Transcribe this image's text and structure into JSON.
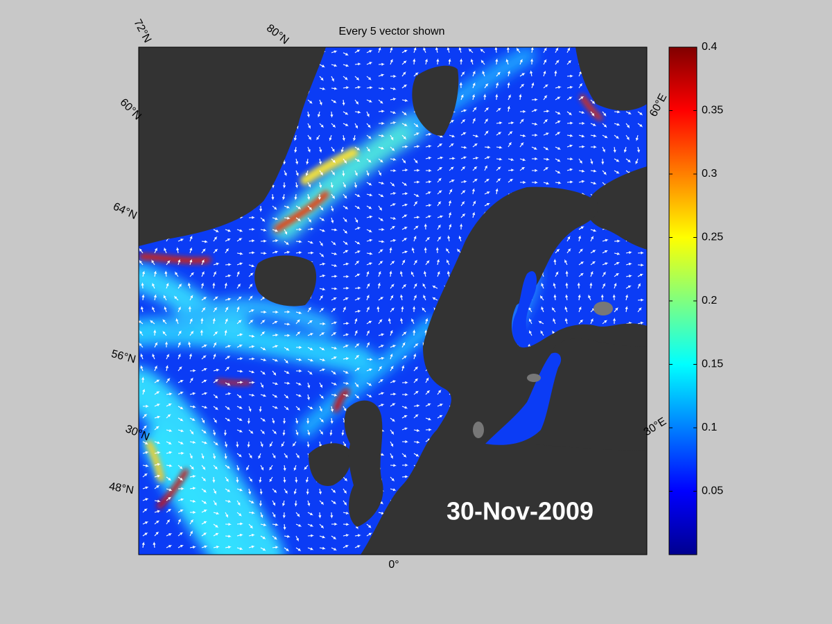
{
  "title": "Every 5 vector shown",
  "date": "30-Nov-2009",
  "graticule_labels": [
    "72°N",
    "80°N",
    "60°N",
    "64°N",
    "56°N",
    "30°N",
    "48°N",
    "0°",
    "60°E",
    "30°E"
  ],
  "colorbar": {
    "colormap": "jet",
    "lim": [
      0,
      0.4
    ],
    "ticks": [
      0.05,
      0.1,
      0.15,
      0.2,
      0.25,
      0.3,
      0.35,
      0.4
    ]
  }
}
